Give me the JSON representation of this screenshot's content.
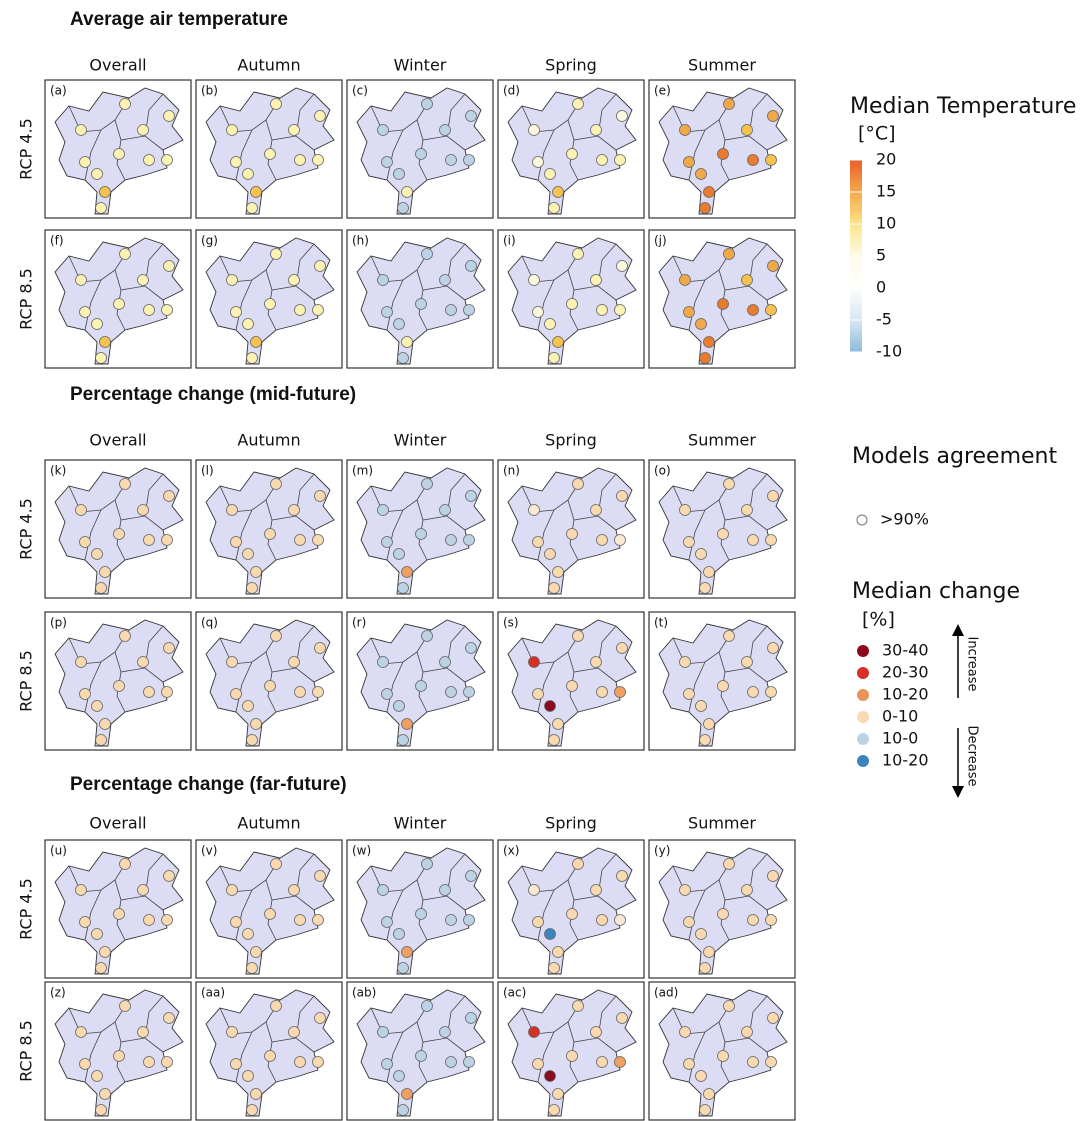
{
  "sections": [
    {
      "title": "Average air temperature",
      "columns": [
        "Overall",
        "Autumn",
        "Winter",
        "Spring",
        "Summer"
      ],
      "rows": [
        "RCP 4.5",
        "RCP 8.5"
      ],
      "panels": [
        [
          {
            "label": "(a)",
            "dots": [
              "#fcf2b4",
              "#fcf2b4",
              "#fcf2b4",
              "#fcf2b4",
              "#fcf2b4",
              "#fcf2b4",
              "#fcf2b4",
              "#fcf2b4",
              "#fcf2b4",
              "#f6c24e",
              "#fcf2b4"
            ]
          },
          {
            "label": "(b)",
            "dots": [
              "#fcf2b4",
              "#fcf2b4",
              "#fcf2b4",
              "#fcf2b4",
              "#fcf2b4",
              "#fcf2b4",
              "#fcf2b4",
              "#fcf2b4",
              "#fcf2b4",
              "#f6c24e",
              "#fcf2b4"
            ]
          },
          {
            "label": "(c)",
            "dots": [
              "#bcd3e6",
              "#bcd3e6",
              "#bcd3e6",
              "#bcd3e6",
              "#bcd3e6",
              "#bcd3e6",
              "#bcd3e6",
              "#bcd3e6",
              "#bcd3e6",
              "#fcf2b4",
              "#bcd3e6"
            ]
          },
          {
            "label": "(d)",
            "dots": [
              "#fdf9e0",
              "#fcf2b4",
              "#fdf9e0",
              "#fdf9e0",
              "#fcf2b4",
              "#fcf2b4",
              "#fcf2b4",
              "#fcf2b4",
              "#fcf2b4",
              "#f6c24e",
              "#fcf2b4"
            ]
          },
          {
            "label": "(e)",
            "dots": [
              "#f0a848",
              "#f0a848",
              "#f0a848",
              "#f0a848",
              "#f0a848",
              "#e87b2e",
              "#f6c24e",
              "#e87b2e",
              "#f6c24e",
              "#e87b2e",
              "#e87b2e"
            ]
          }
        ],
        [
          {
            "label": "(f)",
            "dots": [
              "#fcf2b4",
              "#fcf2b4",
              "#fcf2b4",
              "#fcf2b4",
              "#fcf2b4",
              "#fcf2b4",
              "#fcf2b4",
              "#fcf2b4",
              "#fcf2b4",
              "#f6c24e",
              "#fcf2b4"
            ]
          },
          {
            "label": "(g)",
            "dots": [
              "#fcf2b4",
              "#fcf2b4",
              "#fcf2b4",
              "#fcf2b4",
              "#fcf2b4",
              "#fcf2b4",
              "#fcf2b4",
              "#fcf2b4",
              "#fcf2b4",
              "#f6c24e",
              "#fcf2b4"
            ]
          },
          {
            "label": "(h)",
            "dots": [
              "#bcd3e6",
              "#bcd3e6",
              "#bcd3e6",
              "#bcd3e6",
              "#bcd3e6",
              "#bcd3e6",
              "#bcd3e6",
              "#bcd3e6",
              "#bcd3e6",
              "#fcf2b4",
              "#bcd3e6"
            ]
          },
          {
            "label": "(i)",
            "dots": [
              "#fdf9e0",
              "#fcf2b4",
              "#fdf9e0",
              "#fdf9e0",
              "#fcf2b4",
              "#fcf2b4",
              "#fcf2b4",
              "#fcf2b4",
              "#fcf2b4",
              "#f6c24e",
              "#fcf2b4"
            ]
          },
          {
            "label": "(j)",
            "dots": [
              "#f0a848",
              "#f0a848",
              "#f0a848",
              "#f0a848",
              "#f0a848",
              "#e87b2e",
              "#f6c24e",
              "#e87b2e",
              "#f6c24e",
              "#e87b2e",
              "#e87b2e"
            ]
          }
        ]
      ]
    },
    {
      "title": "Percentage change (mid-future)",
      "columns": [
        "Overall",
        "Autumn",
        "Winter",
        "Spring",
        "Summer"
      ],
      "rows": [
        "RCP 4.5",
        "RCP 8.5"
      ],
      "panels": [
        [
          {
            "label": "(k)",
            "dots": [
              "#f9d9b0",
              "#f9d9b0",
              "#f9d9b0",
              "#f9d9b0",
              "#f9d9b0",
              "#f9d9b0",
              "#f9d9b0",
              "#f9d9b0",
              "#f9d9b0",
              "#f9d9b0",
              "#f9d9b0"
            ]
          },
          {
            "label": "(l)",
            "dots": [
              "#f9d9b0",
              "#f9d9b0",
              "#f9d9b0",
              "#f9d9b0",
              "#f9d9b0",
              "#f9d9b0",
              "#f9d9b0",
              "#f9d9b0",
              "#f9d9b0",
              "#f9d9b0",
              "#f9d9b0"
            ]
          },
          {
            "label": "(m)",
            "dots": [
              "#bcd3e6",
              "#bcd3e6",
              "#bcd3e6",
              "#bcd3e6",
              "#bcd3e6",
              "#bcd3e6",
              "#bcd3e6",
              "#bcd3e6",
              "#bcd3e6",
              "#f2a060",
              "#bcd3e6"
            ]
          },
          {
            "label": "(n)",
            "dots": [
              "#fbe8d4",
              "#f9d9b0",
              "#f9d9b0",
              "#f9d9b0",
              "#f9d9b0",
              "#f9d9b0",
              "#f9d9b0",
              "#f9d9b0",
              "#fbe8d4",
              "#f9d9b0",
              "#f9d9b0"
            ]
          },
          {
            "label": "(o)",
            "dots": [
              "#f9d9b0",
              "#f9d9b0",
              "#f9d9b0",
              "#f9d9b0",
              "#f9d9b0",
              "#f9d9b0",
              "#f9d9b0",
              "#f9d9b0",
              "#f9d9b0",
              "#f9d9b0",
              "#f9d9b0"
            ]
          }
        ],
        [
          {
            "label": "(p)",
            "dots": [
              "#f9d9b0",
              "#f9d9b0",
              "#f9d9b0",
              "#f9d9b0",
              "#f9d9b0",
              "#f9d9b0",
              "#f9d9b0",
              "#f9d9b0",
              "#f9d9b0",
              "#f9d9b0",
              "#f9d9b0"
            ]
          },
          {
            "label": "(q)",
            "dots": [
              "#f9d9b0",
              "#f9d9b0",
              "#f9d9b0",
              "#f9d9b0",
              "#f9d9b0",
              "#f9d9b0",
              "#f9d9b0",
              "#f9d9b0",
              "#f9d9b0",
              "#f9d9b0",
              "#f9d9b0"
            ]
          },
          {
            "label": "(r)",
            "dots": [
              "#bcd3e6",
              "#bcd3e6",
              "#bcd3e6",
              "#bcd3e6",
              "#bcd3e6",
              "#bcd3e6",
              "#bcd3e6",
              "#bcd3e6",
              "#bcd3e6",
              "#f2a060",
              "#bcd3e6"
            ]
          },
          {
            "label": "(s)",
            "dots": [
              "#d73027",
              "#f9d9b0",
              "#f9d9b0",
              "#f9d9b0",
              "#8b0a1e",
              "#f9d9b0",
              "#f9d9b0",
              "#f9d9b0",
              "#f2a060",
              "#f9d9b0",
              "#f9d9b0"
            ]
          },
          {
            "label": "(t)",
            "dots": [
              "#f9d9b0",
              "#f9d9b0",
              "#f9d9b0",
              "#f9d9b0",
              "#f9d9b0",
              "#f9d9b0",
              "#f9d9b0",
              "#f9d9b0",
              "#f9d9b0",
              "#f9d9b0",
              "#f9d9b0"
            ]
          }
        ]
      ]
    },
    {
      "title": "Percentage change (far-future)",
      "columns": [
        "Overall",
        "Autumn",
        "Winter",
        "Spring",
        "Summer"
      ],
      "rows": [
        "RCP 4.5",
        "RCP 8.5"
      ],
      "panels": [
        [
          {
            "label": "(u)",
            "dots": [
              "#f9d9b0",
              "#f9d9b0",
              "#f9d9b0",
              "#f9d9b0",
              "#f9d9b0",
              "#f9d9b0",
              "#f9d9b0",
              "#f9d9b0",
              "#f9d9b0",
              "#f9d9b0",
              "#f9d9b0"
            ]
          },
          {
            "label": "(v)",
            "dots": [
              "#f9d9b0",
              "#f9d9b0",
              "#f9d9b0",
              "#f9d9b0",
              "#f9d9b0",
              "#f9d9b0",
              "#f9d9b0",
              "#f9d9b0",
              "#f9d9b0",
              "#f9d9b0",
              "#f9d9b0"
            ]
          },
          {
            "label": "(w)",
            "dots": [
              "#bcd3e6",
              "#bcd3e6",
              "#bcd3e6",
              "#bcd3e6",
              "#bcd3e6",
              "#bcd3e6",
              "#bcd3e6",
              "#bcd3e6",
              "#bcd3e6",
              "#f2a060",
              "#bcd3e6"
            ]
          },
          {
            "label": "(x)",
            "dots": [
              "#fbe8d4",
              "#f9d9b0",
              "#f9d9b0",
              "#f9d9b0",
              "#3c84c0",
              "#f9d9b0",
              "#f9d9b0",
              "#f9d9b0",
              "#fbe8d4",
              "#f9d9b0",
              "#f9d9b0"
            ]
          },
          {
            "label": "(y)",
            "dots": [
              "#f9d9b0",
              "#f9d9b0",
              "#f9d9b0",
              "#f9d9b0",
              "#f9d9b0",
              "#f9d9b0",
              "#f9d9b0",
              "#f9d9b0",
              "#f9d9b0",
              "#f9d9b0",
              "#f9d9b0"
            ]
          }
        ],
        [
          {
            "label": "(z)",
            "dots": [
              "#f9d9b0",
              "#f9d9b0",
              "#f9d9b0",
              "#f9d9b0",
              "#f9d9b0",
              "#f9d9b0",
              "#f9d9b0",
              "#f9d9b0",
              "#f9d9b0",
              "#f9d9b0",
              "#f9d9b0"
            ]
          },
          {
            "label": "(aa)",
            "dots": [
              "#f9d9b0",
              "#f9d9b0",
              "#f9d9b0",
              "#f9d9b0",
              "#f9d9b0",
              "#f9d9b0",
              "#f9d9b0",
              "#f9d9b0",
              "#f9d9b0",
              "#f9d9b0",
              "#f9d9b0"
            ]
          },
          {
            "label": "(ab)",
            "dots": [
              "#bcd3e6",
              "#bcd3e6",
              "#bcd3e6",
              "#bcd3e6",
              "#bcd3e6",
              "#bcd3e6",
              "#bcd3e6",
              "#bcd3e6",
              "#bcd3e6",
              "#f2a060",
              "#bcd3e6"
            ]
          },
          {
            "label": "(ac)",
            "dots": [
              "#d73027",
              "#f9d9b0",
              "#f9d9b0",
              "#f9d9b0",
              "#8b0a1e",
              "#f9d9b0",
              "#f9d9b0",
              "#f9d9b0",
              "#f2a060",
              "#f9d9b0",
              "#f9d9b0"
            ]
          },
          {
            "label": "(ad)",
            "dots": [
              "#f9d9b0",
              "#f9d9b0",
              "#f9d9b0",
              "#f9d9b0",
              "#f9d9b0",
              "#f9d9b0",
              "#f9d9b0",
              "#f9d9b0",
              "#f9d9b0",
              "#f9d9b0",
              "#f9d9b0"
            ]
          }
        ]
      ]
    }
  ],
  "legends": {
    "temperature": {
      "title": "Median Temperature",
      "unit": "[°C]",
      "ticks": [
        20,
        15,
        10,
        5,
        0,
        -5,
        -10
      ],
      "colors": [
        "#e8602a",
        "#f4a84a",
        "#fbe38a",
        "#fdfbe8",
        "#ffffff",
        "#d6e6f2",
        "#8fbcdc"
      ]
    },
    "agreement": {
      "title": "Models agreement",
      "label": ">90%"
    },
    "change": {
      "title": "Median change",
      "unit": "[%]",
      "increase": "Increase",
      "decrease": "Decrease",
      "items": [
        {
          "label": "30-40",
          "color": "#8b0a1e"
        },
        {
          "label": "20-30",
          "color": "#d73027"
        },
        {
          "label": "10-20",
          "color": "#e8935a"
        },
        {
          "label": "0-10",
          "color": "#f9d9b0"
        },
        {
          "label": "10-0",
          "color": "#bcd3e6"
        },
        {
          "label": "10-20",
          "color": "#3c84c0"
        }
      ]
    }
  }
}
